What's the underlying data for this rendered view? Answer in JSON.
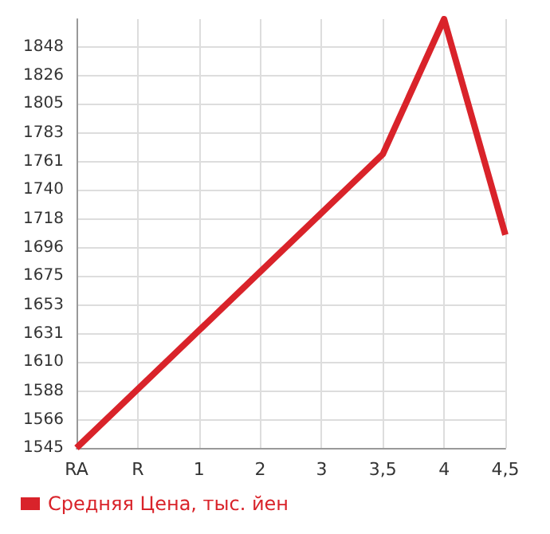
{
  "chart_data": {
    "type": "line",
    "categories": [
      "RA",
      "R",
      "1",
      "2",
      "3",
      "3,5",
      "4",
      "4,5"
    ],
    "series": [
      {
        "name": "Средняя Цена, тыс. йен",
        "color": "#d9232a",
        "values": [
          1545,
          null,
          null,
          null,
          null,
          1767,
          1869,
          1706
        ]
      }
    ],
    "ylim": [
      1545,
      1869
    ],
    "yticks": [
      1545,
      1566,
      1588,
      1610,
      1631,
      1653,
      1675,
      1696,
      1718,
      1740,
      1761,
      1783,
      1805,
      1826,
      1848
    ],
    "grid": true,
    "legend": "bottom left",
    "marker": "none"
  }
}
